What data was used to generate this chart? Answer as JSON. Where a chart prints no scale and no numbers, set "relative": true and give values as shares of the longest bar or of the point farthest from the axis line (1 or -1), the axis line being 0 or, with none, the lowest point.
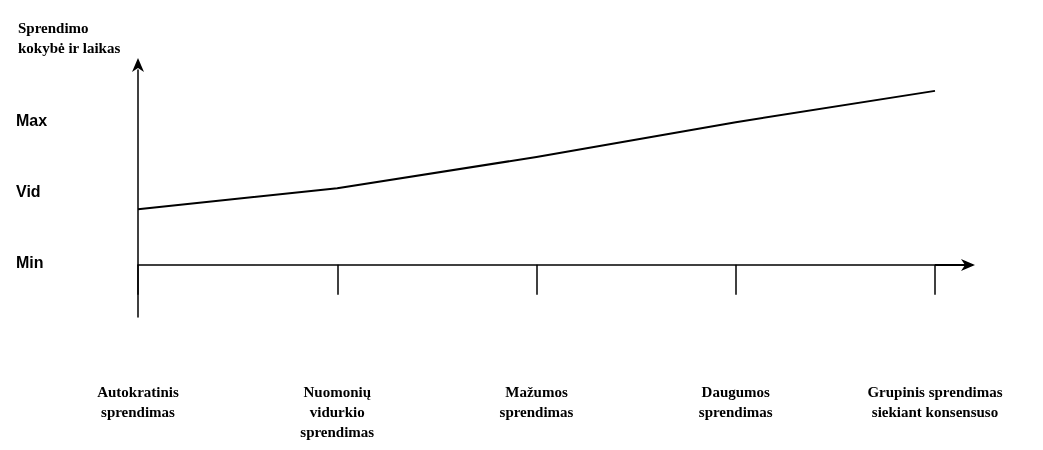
{
  "chart_data": {
    "type": "line",
    "ylabel": "Sprendimo\nkokybė ir laikas",
    "relative": true,
    "categories": [
      "Autokratinis\nsprendimas",
      "Nuomonių\nvidurkio\nsprendimas",
      "Mažumos\nsprendimas",
      "Daugumos\nsprendimas",
      "Grupinis sprendimas\nsiekiant konsensuso"
    ],
    "series": [
      {
        "color": "#000000",
        "values": [
          0.32,
          0.44,
          0.62,
          0.82,
          1
        ]
      }
    ],
    "annotations": [
      "Min",
      "Vid",
      "Max"
    ],
    "grid": false,
    "marker": "none",
    "line_style": "solid"
  }
}
